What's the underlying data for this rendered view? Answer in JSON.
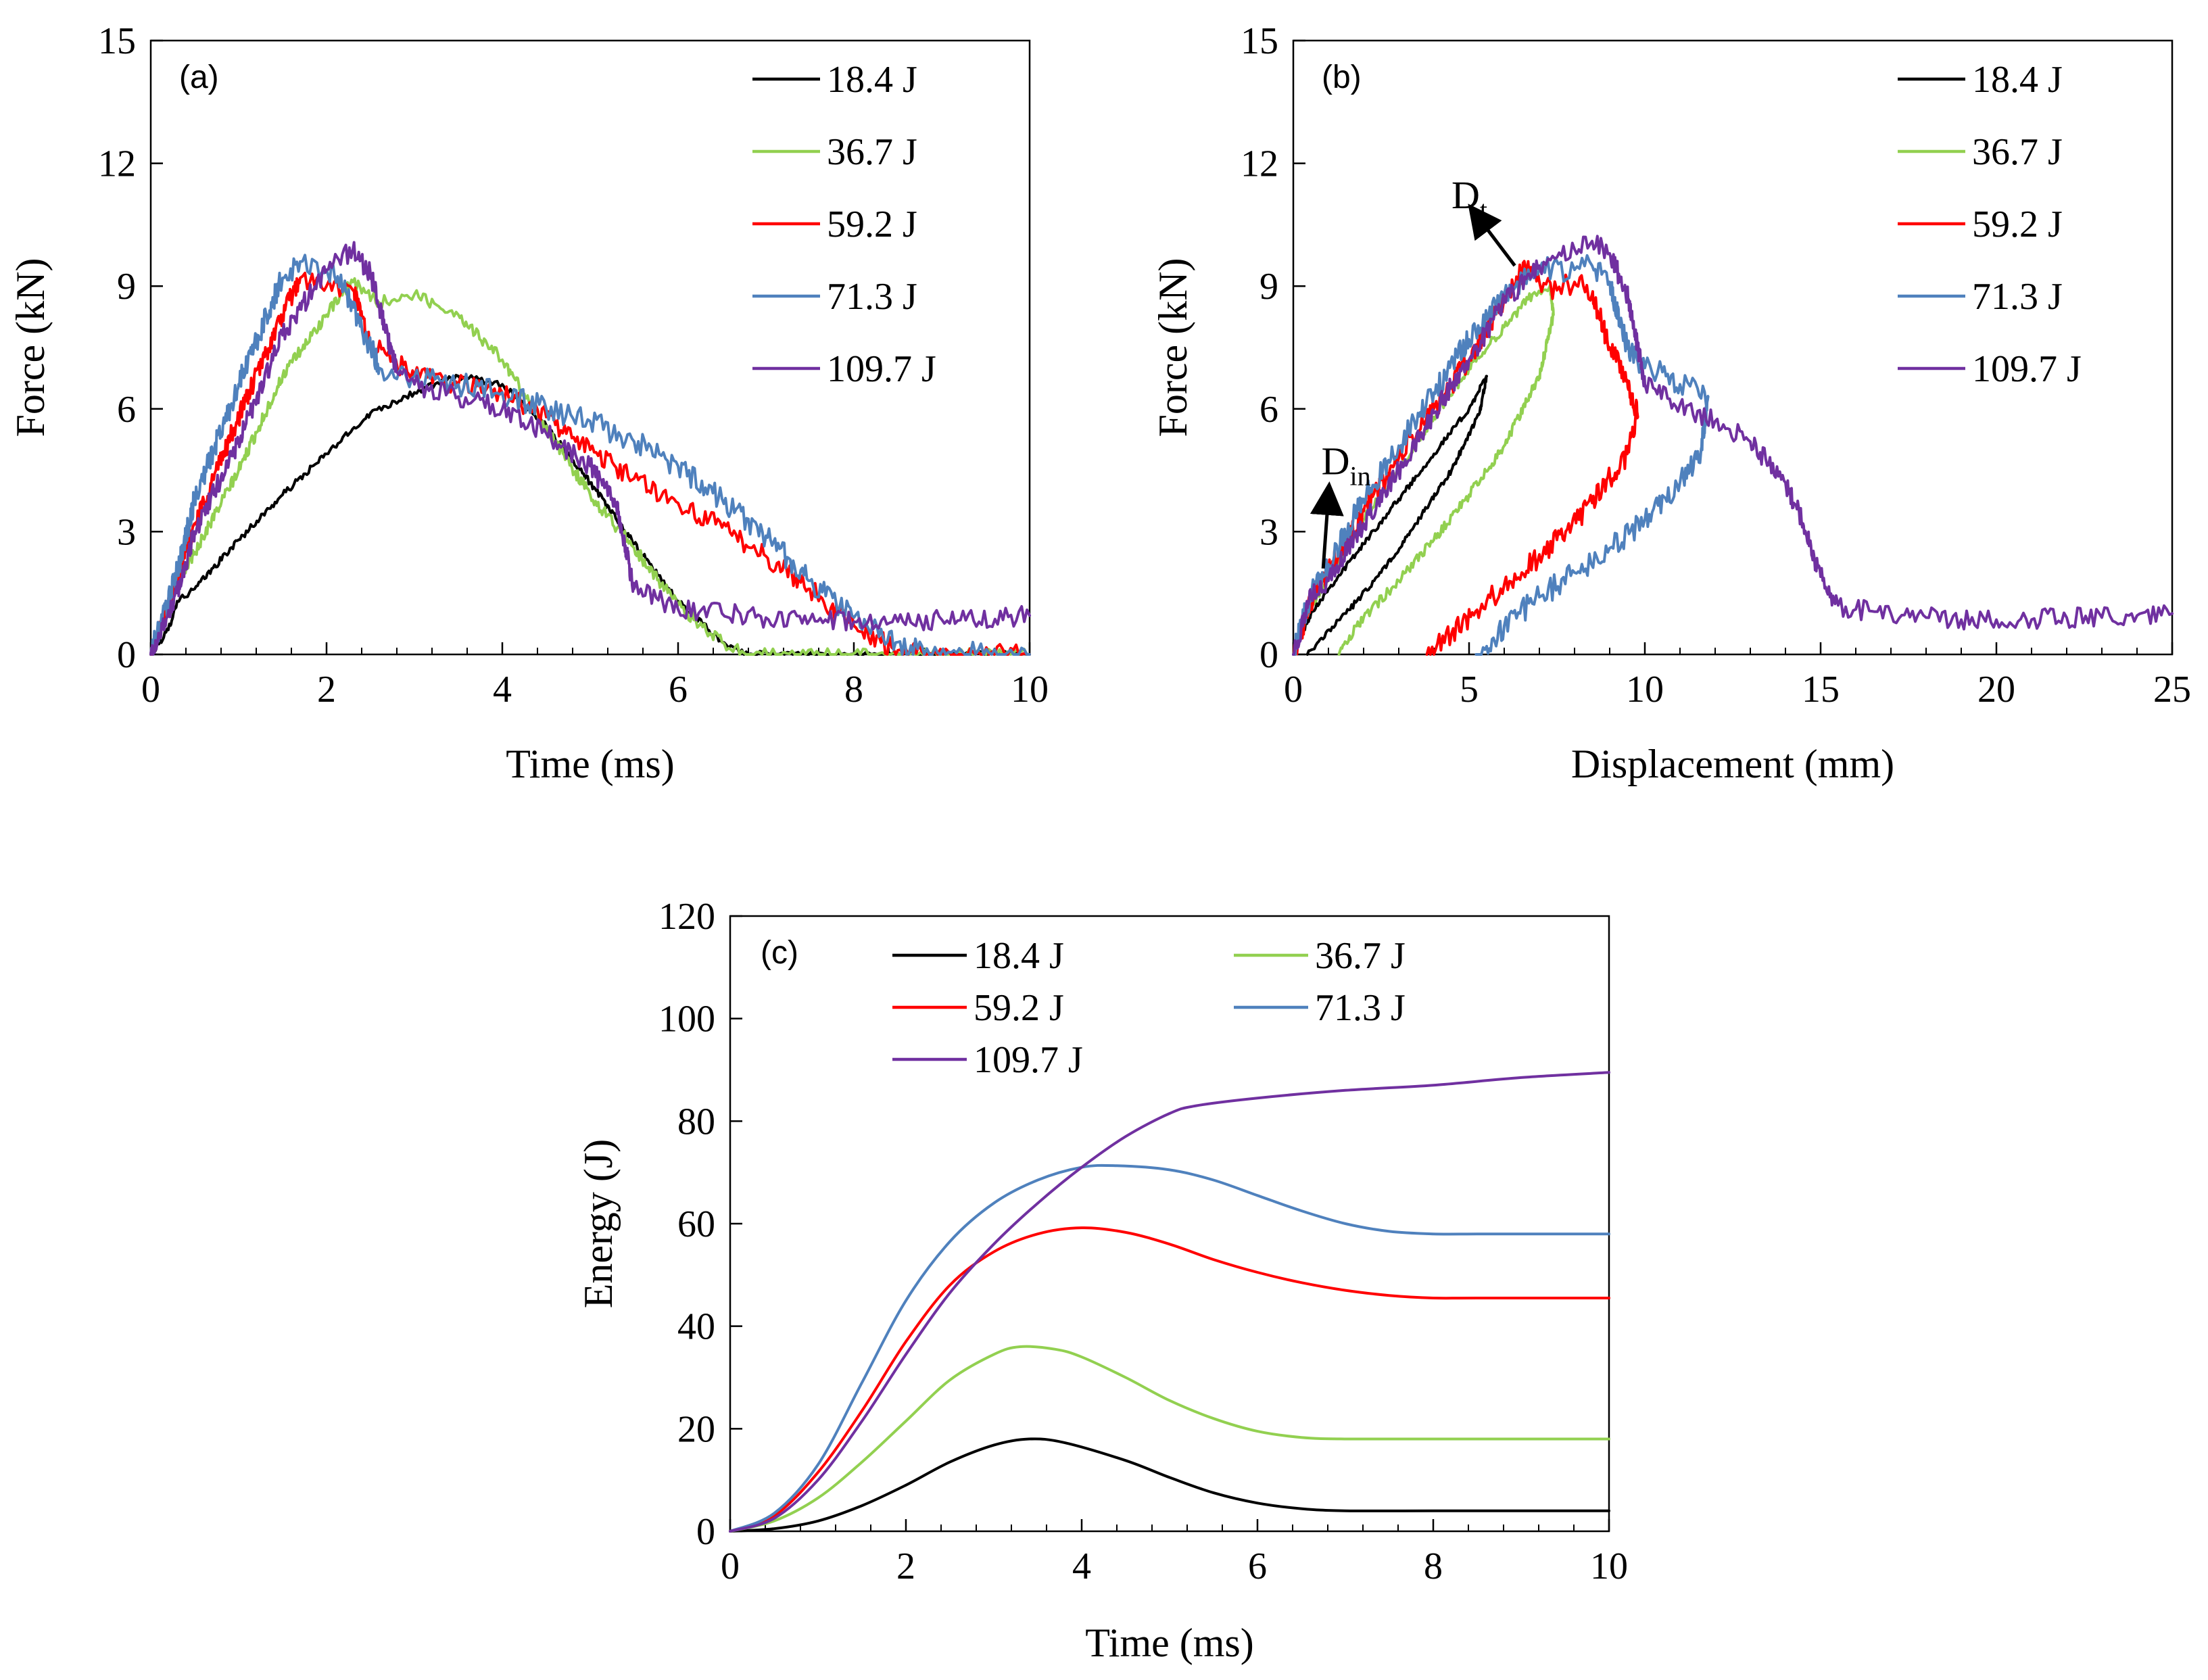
{
  "chart_data": [
    {
      "type": "line",
      "panel_label": "(a)",
      "xlabel": "Time (ms)",
      "ylabel": "Force (kN)",
      "xlim": [
        0,
        10
      ],
      "ylim": [
        0,
        15
      ],
      "xticks": [
        0,
        2,
        4,
        6,
        8,
        10
      ],
      "yticks": [
        0,
        3,
        6,
        9,
        12,
        15
      ],
      "legend_position": "top-right",
      "series": [
        {
          "name": "18.4 J",
          "color": "#000000",
          "noise": 0.08,
          "x": [
            0,
            0.2,
            0.3,
            0.5,
            1.0,
            1.5,
            2.0,
            2.5,
            3.0,
            3.5,
            4.0,
            4.5,
            5.0,
            5.5,
            6.0,
            6.5,
            6.8,
            6.9,
            10
          ],
          "y": [
            0,
            0.6,
            1.3,
            1.6,
            2.8,
            3.9,
            4.9,
            5.9,
            6.4,
            6.8,
            6.6,
            5.6,
            4.2,
            2.7,
            1.3,
            0.3,
            0.0,
            0,
            0
          ]
        },
        {
          "name": "36.7 J",
          "color": "#92d050",
          "noise": 0.15,
          "x": [
            0,
            0.2,
            0.5,
            1.0,
            1.5,
            2.0,
            2.3,
            2.6,
            3.0,
            3.5,
            4.0,
            4.3,
            4.6,
            5.0,
            5.5,
            6.0,
            6.5,
            6.8,
            10
          ],
          "y": [
            0,
            1.3,
            2.5,
            4.5,
            6.8,
            8.3,
            9.1,
            8.6,
            8.8,
            8.3,
            7.2,
            6.2,
            5.2,
            3.9,
            2.6,
            1.2,
            0.3,
            0,
            0
          ]
        },
        {
          "name": "59.2 J",
          "color": "#ff0000",
          "noise": 0.25,
          "x": [
            0,
            0.3,
            0.5,
            1.0,
            1.5,
            1.7,
            2.0,
            2.3,
            2.5,
            3.0,
            3.5,
            4.0,
            4.5,
            5.0,
            5.5,
            6.0,
            6.5,
            7.0,
            7.5,
            8.0,
            8.5,
            8.8,
            10
          ],
          "y": [
            0,
            1.8,
            3.2,
            5.8,
            8.3,
            9.2,
            9.0,
            8.9,
            7.6,
            6.8,
            6.6,
            6.4,
            5.8,
            5.0,
            4.3,
            3.7,
            3.1,
            2.4,
            1.6,
            0.7,
            0.1,
            0,
            0
          ]
        },
        {
          "name": "71.3 J",
          "color": "#4f81bd",
          "noise": 0.3,
          "x": [
            0,
            0.3,
            0.5,
            1.0,
            1.5,
            1.7,
            2.0,
            2.2,
            2.4,
            2.6,
            3.0,
            3.5,
            4.0,
            4.5,
            5.0,
            5.5,
            6.0,
            6.5,
            7.0,
            7.5,
            8.0,
            8.5,
            8.8,
            10
          ],
          "y": [
            0,
            2.0,
            3.8,
            6.6,
            9.2,
            9.6,
            9.4,
            9.0,
            8.0,
            7.0,
            6.8,
            6.6,
            6.4,
            6.0,
            5.7,
            5.2,
            4.6,
            3.8,
            2.9,
            1.8,
            0.9,
            0.3,
            0,
            0
          ]
        },
        {
          "name": "109.7 J",
          "color": "#7030a0",
          "noise": 0.25,
          "x": [
            0,
            0.3,
            0.5,
            1.0,
            1.5,
            2.0,
            2.3,
            2.5,
            2.8,
            3.0,
            3.5,
            4.0,
            4.5,
            5.0,
            5.3,
            5.5,
            6.0,
            6.5,
            7.0,
            7.5,
            8.0,
            8.5,
            9.0,
            10
          ],
          "y": [
            0,
            1.5,
            3.0,
            5.2,
            7.8,
            9.4,
            9.9,
            9.3,
            6.9,
            6.6,
            6.3,
            6.0,
            5.4,
            4.6,
            3.6,
            1.6,
            1.1,
            1.0,
            0.9,
            0.85,
            0.8,
            0.8,
            0.85,
            0.95
          ]
        }
      ]
    },
    {
      "type": "line",
      "panel_label": "(b)",
      "xlabel": "Displacement (mm)",
      "ylabel": "Force (kN)",
      "xlim": [
        0,
        25
      ],
      "ylim": [
        0,
        15
      ],
      "xticks": [
        0,
        5,
        10,
        15,
        20,
        25
      ],
      "yticks": [
        0,
        3,
        6,
        9,
        12,
        15
      ],
      "legend_position": "top-right",
      "annotations": [
        {
          "main": "D",
          "sub": "t",
          "x": 4.5,
          "y": 10.9
        },
        {
          "main": "D",
          "sub": "in",
          "x": 0.8,
          "y": 4.4
        }
      ],
      "series": [
        {
          "name": "18.4 J",
          "color": "#000000",
          "noise": 0.07,
          "x": [
            0,
            0.5,
            1.0,
            2.0,
            3.0,
            4.0,
            5.0,
            5.5,
            5.3,
            4.5,
            3.5,
            2.5,
            1.5,
            0.8,
            0.4
          ],
          "y": [
            0,
            1.0,
            1.6,
            2.7,
            3.8,
            4.9,
            6.0,
            6.8,
            5.9,
            4.5,
            3.2,
            2.0,
            1.0,
            0.4,
            0.0
          ]
        },
        {
          "name": "36.7 J",
          "color": "#92d050",
          "noise": 0.12,
          "x": [
            0,
            0.5,
            1.0,
            2.0,
            3.0,
            4.0,
            5.0,
            6.0,
            6.8,
            7.3,
            7.4,
            7.0,
            6.0,
            5.0,
            4.0,
            3.0,
            2.0,
            1.5,
            1.3
          ],
          "y": [
            0,
            1.2,
            1.9,
            3.3,
            4.5,
            5.8,
            7.0,
            8.0,
            8.8,
            9.0,
            8.3,
            6.8,
            5.1,
            3.9,
            2.8,
            1.8,
            0.9,
            0.3,
            0.0
          ]
        },
        {
          "name": "59.2 J",
          "color": "#ff0000",
          "noise": 0.28,
          "x": [
            0,
            0.5,
            1.0,
            2.0,
            3.0,
            4.0,
            5.0,
            6.0,
            6.6,
            7.0,
            7.5,
            8.0,
            8.5,
            9.0,
            9.5,
            9.8,
            9.5,
            8.5,
            7.5,
            6.5,
            5.5,
            4.5,
            3.8
          ],
          "y": [
            0,
            1.3,
            2.0,
            3.5,
            4.8,
            6.0,
            7.2,
            8.7,
            9.5,
            9.1,
            8.9,
            9.1,
            8.8,
            7.5,
            6.7,
            5.8,
            4.9,
            3.7,
            2.8,
            2.0,
            1.3,
            0.5,
            0.0
          ]
        },
        {
          "name": "71.3 J",
          "color": "#4f81bd",
          "noise": 0.3,
          "x": [
            0,
            0.5,
            1.0,
            2.0,
            3.0,
            4.0,
            5.0,
            6.0,
            7.0,
            8.0,
            8.5,
            9.0,
            9.3,
            9.6,
            10.0,
            10.5,
            11.0,
            11.5,
            11.8,
            11.6,
            11.0,
            10.0,
            9.0,
            8.0,
            7.0,
            6.0,
            5.5,
            5.2
          ],
          "y": [
            0,
            1.5,
            2.2,
            3.8,
            5.1,
            6.4,
            7.7,
            8.8,
            9.4,
            9.4,
            9.5,
            9.1,
            8.0,
            7.4,
            7.0,
            6.9,
            6.6,
            6.5,
            6.3,
            5.0,
            4.2,
            3.3,
            2.6,
            2.0,
            1.4,
            0.7,
            0.2,
            0.0
          ]
        },
        {
          "name": "109.7 J",
          "color": "#7030a0",
          "noise": 0.25,
          "x": [
            0,
            0.5,
            1.0,
            2.0,
            3.0,
            4.0,
            5.0,
            6.0,
            7.0,
            8.0,
            8.5,
            9.0,
            9.5,
            10.0,
            11.0,
            12.0,
            13.0,
            14.0,
            14.5,
            15.0,
            15.5,
            16.0,
            17.0,
            18.0,
            19.0,
            20.0,
            21.0,
            22.0,
            23.0,
            24.0,
            25.0
          ],
          "y": [
            0,
            1.4,
            1.8,
            3.2,
            4.5,
            5.9,
            7.2,
            8.6,
            9.5,
            9.9,
            10.1,
            9.8,
            8.8,
            6.6,
            6.1,
            5.7,
            5.2,
            4.2,
            3.2,
            1.9,
            1.2,
            1.1,
            1.0,
            0.9,
            0.85,
            0.85,
            0.85,
            0.9,
            0.9,
            0.95,
            1.0
          ]
        }
      ]
    },
    {
      "type": "line",
      "panel_label": "(c)",
      "xlabel": "Time (ms)",
      "ylabel": "Energy (J)",
      "xlim": [
        0,
        10
      ],
      "ylim": [
        0,
        120
      ],
      "xticks": [
        0,
        2,
        4,
        6,
        8,
        10
      ],
      "yticks": [
        0,
        20,
        40,
        60,
        80,
        100,
        120
      ],
      "legend_position": "top",
      "series": [
        {
          "name": "18.4 J",
          "color": "#000000",
          "noise": 0,
          "x": [
            0,
            0.5,
            1.0,
            1.5,
            2.0,
            2.5,
            3.0,
            3.4,
            3.8,
            4.5,
            5.0,
            5.5,
            6.0,
            6.5,
            7.0,
            8.0,
            10.0
          ],
          "y": [
            0,
            0.5,
            2.0,
            5.0,
            9.0,
            13.5,
            16.8,
            18.0,
            17.3,
            13.8,
            10.5,
            7.5,
            5.5,
            4.4,
            4.0,
            4.0,
            4.0
          ]
        },
        {
          "name": "36.7 J",
          "color": "#92d050",
          "noise": 0,
          "x": [
            0,
            0.5,
            1.0,
            1.5,
            2.0,
            2.5,
            3.0,
            3.3,
            3.7,
            4.0,
            4.5,
            5.0,
            5.5,
            6.0,
            6.5,
            7.0,
            8.0,
            10.0
          ],
          "y": [
            0,
            2.0,
            6.5,
            13.5,
            21.5,
            29.5,
            34.5,
            36.0,
            35.5,
            34.0,
            30.0,
            25.5,
            22.0,
            19.5,
            18.3,
            18.0,
            18.0,
            18.0
          ]
        },
        {
          "name": "59.2 J",
          "color": "#ff0000",
          "noise": 0,
          "x": [
            0,
            0.5,
            1.0,
            1.5,
            2.0,
            2.5,
            3.0,
            3.5,
            4.0,
            4.5,
            5.0,
            5.5,
            6.0,
            6.5,
            7.0,
            7.5,
            8.0,
            8.5,
            10.0
          ],
          "y": [
            0,
            3.0,
            11.5,
            23.5,
            37.0,
            48.0,
            54.5,
            58.0,
            59.2,
            58.3,
            56.0,
            53.0,
            50.5,
            48.5,
            47.0,
            46.0,
            45.5,
            45.5,
            45.5
          ]
        },
        {
          "name": "71.3 J",
          "color": "#4f81bd",
          "noise": 0,
          "x": [
            0,
            0.5,
            1.0,
            1.5,
            2.0,
            2.5,
            3.0,
            3.5,
            4.0,
            4.4,
            5.0,
            5.5,
            6.0,
            6.5,
            7.0,
            7.5,
            8.0,
            8.5,
            9.0,
            10.0
          ],
          "y": [
            0,
            3.5,
            13.0,
            29.0,
            45.0,
            56.5,
            64.0,
            68.5,
            71.0,
            71.3,
            70.5,
            68.5,
            65.5,
            62.5,
            60.0,
            58.5,
            58.0,
            58.0,
            58.0,
            58.0
          ]
        },
        {
          "name": "109.7 J",
          "color": "#7030a0",
          "noise": 0,
          "x": [
            0,
            0.5,
            1.0,
            1.5,
            2.0,
            2.5,
            3.0,
            3.5,
            4.0,
            4.5,
            5.0,
            5.3,
            6.0,
            7.0,
            8.0,
            9.0,
            10.0
          ],
          "y": [
            0,
            2.5,
            10.0,
            21.5,
            34.5,
            46.5,
            56.0,
            64.0,
            71.0,
            77.0,
            81.5,
            83.0,
            84.5,
            86.0,
            87.0,
            88.5,
            89.5
          ]
        }
      ]
    }
  ]
}
